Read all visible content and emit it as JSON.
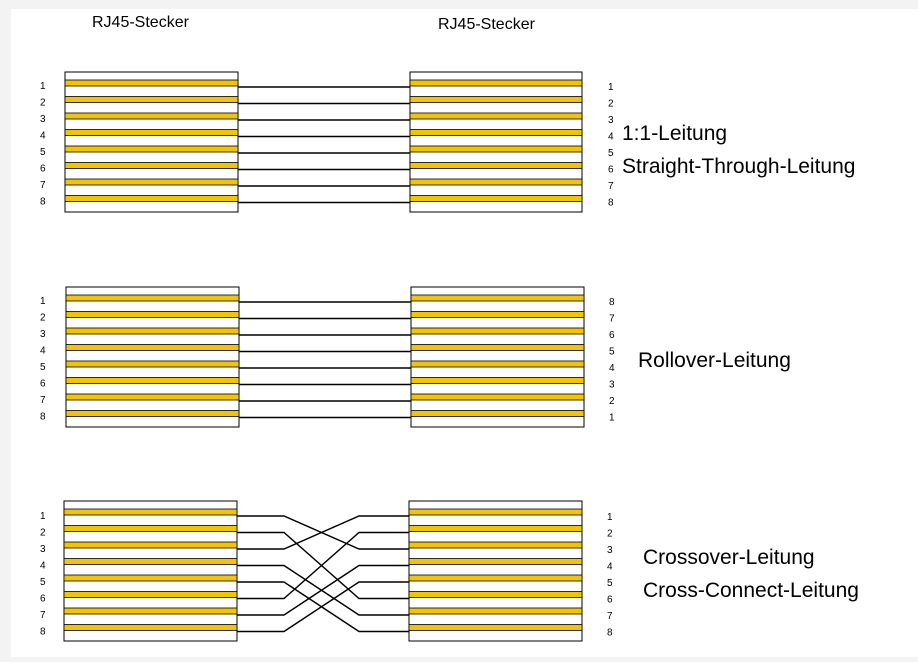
{
  "colors": {
    "background": "#ffffff",
    "wire": "#f4c400",
    "line": "#000000",
    "outline": "#000000"
  },
  "headers": {
    "left": "RJ45-Stecker",
    "right": "RJ45-Stecker"
  },
  "sections": [
    {
      "id": "straight",
      "titles": [
        "1:1-Leitung",
        "Straight-Through-Leitung"
      ],
      "left_pins": [
        "1",
        "2",
        "3",
        "4",
        "5",
        "6",
        "7",
        "8"
      ],
      "right_pins": [
        "1",
        "2",
        "3",
        "4",
        "5",
        "6",
        "7",
        "8"
      ],
      "mapping": [
        1,
        2,
        3,
        4,
        5,
        6,
        7,
        8
      ]
    },
    {
      "id": "rollover",
      "titles": [
        "Rollover-Leitung"
      ],
      "left_pins": [
        "1",
        "2",
        "3",
        "4",
        "5",
        "6",
        "7",
        "8"
      ],
      "right_pins": [
        "8",
        "7",
        "6",
        "5",
        "4",
        "3",
        "2",
        "1"
      ],
      "mapping": [
        1,
        2,
        3,
        4,
        5,
        6,
        7,
        8
      ]
    },
    {
      "id": "crossover",
      "titles": [
        "Crossover-Leitung",
        "Cross-Connect-Leitung"
      ],
      "left_pins": [
        "1",
        "2",
        "3",
        "4",
        "5",
        "6",
        "7",
        "8"
      ],
      "right_pins": [
        "1",
        "2",
        "3",
        "4",
        "5",
        "6",
        "7",
        "8"
      ],
      "mapping": [
        3,
        6,
        1,
        7,
        8,
        2,
        4,
        5
      ]
    }
  ]
}
